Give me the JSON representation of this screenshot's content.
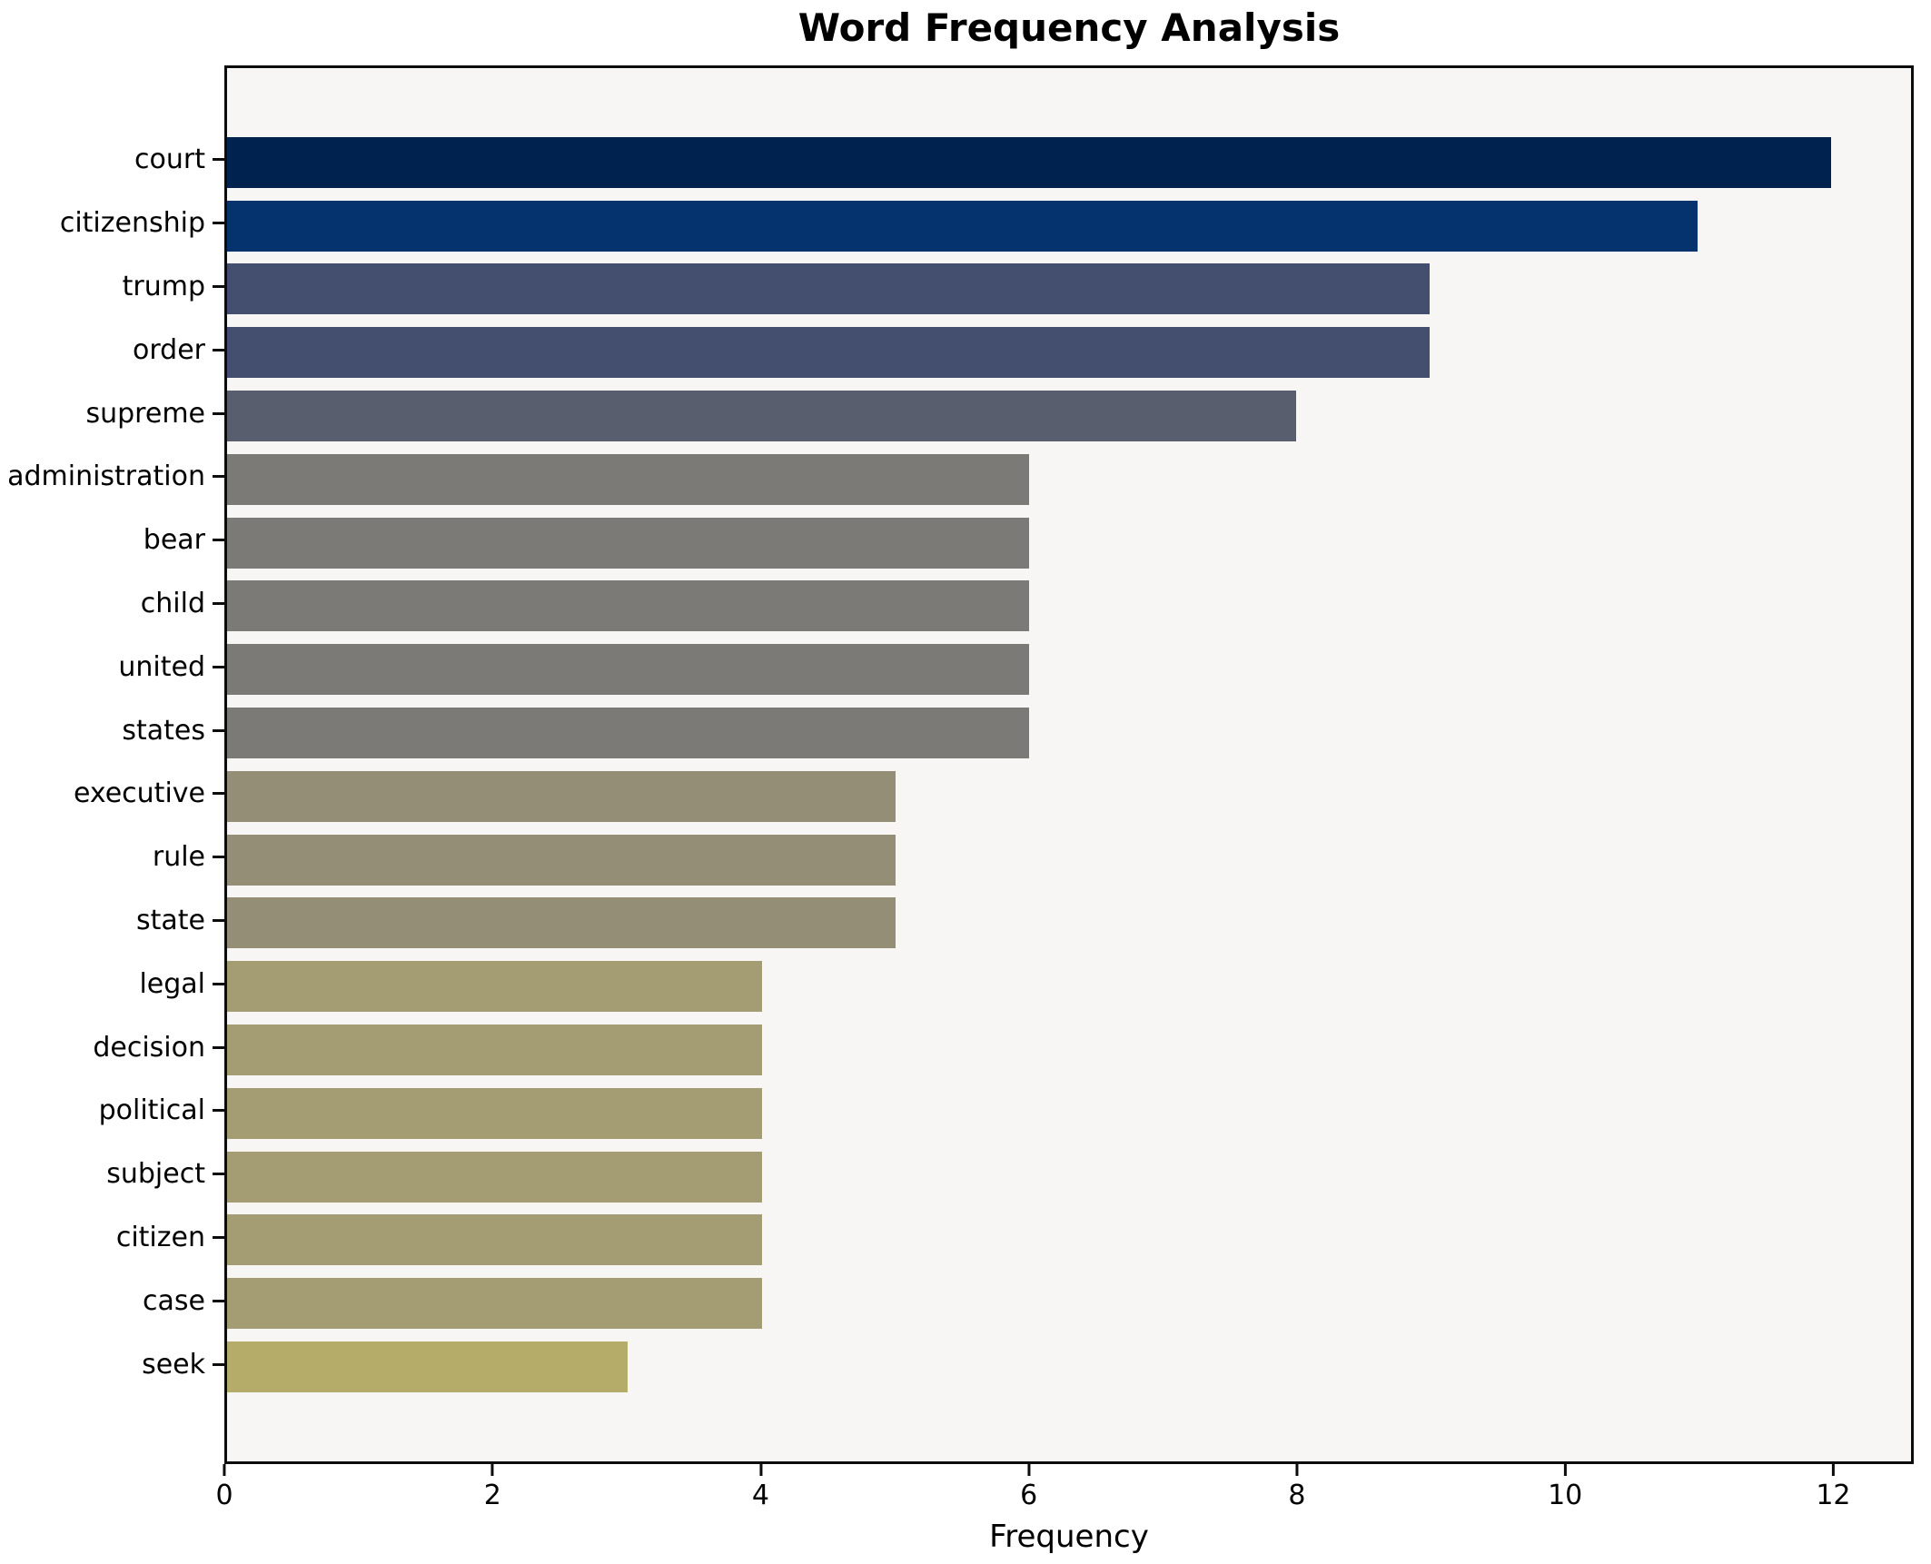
{
  "chart_data": {
    "type": "bar",
    "orientation": "horizontal",
    "title": "Word Frequency Analysis",
    "xlabel": "Frequency",
    "ylabel": "",
    "categories": [
      "court",
      "citizenship",
      "trump",
      "order",
      "supreme",
      "administration",
      "bear",
      "child",
      "united",
      "states",
      "executive",
      "rule",
      "state",
      "legal",
      "decision",
      "political",
      "subject",
      "citizen",
      "case",
      "seek"
    ],
    "values": [
      12,
      11,
      9,
      9,
      8,
      6,
      6,
      6,
      6,
      6,
      5,
      5,
      5,
      4,
      4,
      4,
      4,
      4,
      4,
      3
    ],
    "bar_colors": [
      "#00224e",
      "#04336e",
      "#444f6f",
      "#444f6f",
      "#585e6e",
      "#7b7a77",
      "#7b7a77",
      "#7b7a77",
      "#7b7a77",
      "#7b7a77",
      "#958e77",
      "#958e77",
      "#958e77",
      "#a49c73",
      "#a49c73",
      "#a49c73",
      "#a49c73",
      "#a49c73",
      "#a49c73",
      "#b6ac69"
    ],
    "xlim": [
      0,
      12.6
    ],
    "x_ticks": [
      0,
      2,
      4,
      6,
      8,
      10,
      12
    ],
    "grid": "off",
    "legend": "none",
    "plot_background": "#f7f6f5",
    "figure_background": "#ffffff",
    "spine_color": "#0c0c0c"
  }
}
